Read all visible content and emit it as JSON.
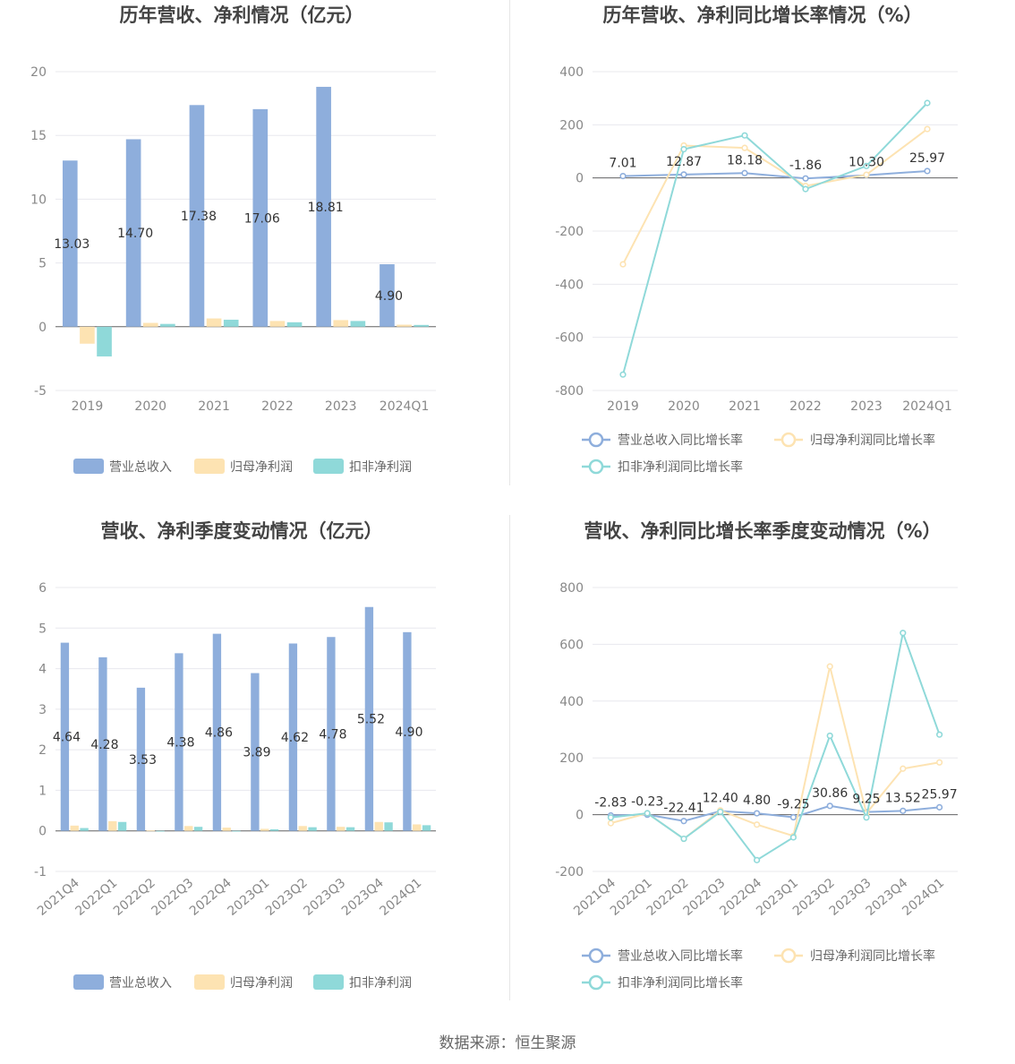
{
  "source": "数据来源：恒生聚源",
  "colors": {
    "revenue": "#8eaedc",
    "net": "#fde3b2",
    "deducted": "#8fd9d9",
    "grid": "#e8e8ee",
    "axis": "#666666",
    "tick": "#888888"
  },
  "chart_data": [
    {
      "type": "bar",
      "title": "历年营收、净利情况（亿元）",
      "categories": [
        "2019",
        "2020",
        "2021",
        "2022",
        "2023",
        "2024Q1"
      ],
      "ylim": [
        -5,
        20
      ],
      "yticks": [
        "-5",
        "0",
        "5",
        "10",
        "15",
        "20"
      ],
      "grid": true,
      "legend_position": "bottom",
      "series": [
        {
          "name": "营业总收入",
          "values": [
            13.03,
            14.7,
            17.38,
            17.06,
            18.81,
            4.9
          ],
          "labels": [
            "13.03",
            "14.70",
            "17.38",
            "17.06",
            "18.81",
            "4.90"
          ]
        },
        {
          "name": "归母净利润",
          "values": [
            -1.33,
            0.3,
            0.65,
            0.45,
            0.52,
            0.16
          ]
        },
        {
          "name": "扣非净利润",
          "values": [
            -2.33,
            0.22,
            0.55,
            0.35,
            0.45,
            0.14
          ]
        }
      ]
    },
    {
      "type": "line",
      "title": "历年营收、净利同比增长率情况（%）",
      "categories": [
        "2019",
        "2020",
        "2021",
        "2022",
        "2023",
        "2024Q1"
      ],
      "ylim": [
        -800,
        400
      ],
      "yticks": [
        "-800",
        "-600",
        "-400",
        "-200",
        "0",
        "200",
        "400"
      ],
      "grid": true,
      "legend_position": "bottom",
      "series": [
        {
          "name": "营业总收入同比增长率",
          "values": [
            7.01,
            12.87,
            18.18,
            -1.86,
            10.3,
            25.97
          ],
          "labels": [
            "7.01",
            "12.87",
            "18.18",
            "-1.86",
            "10.30",
            "25.97"
          ]
        },
        {
          "name": "归母净利润同比增长率",
          "values": [
            -325,
            122,
            113,
            -30,
            12,
            184
          ]
        },
        {
          "name": "扣非净利润同比增长率",
          "values": [
            -740,
            108,
            160,
            -42,
            45,
            282
          ]
        }
      ]
    },
    {
      "type": "bar",
      "title": "营收、净利季度变动情况（亿元）",
      "categories": [
        "2021Q4",
        "2022Q1",
        "2022Q2",
        "2022Q3",
        "2022Q4",
        "2023Q1",
        "2023Q2",
        "2023Q3",
        "2023Q4",
        "2024Q1"
      ],
      "ylim": [
        -1,
        6
      ],
      "yticks": [
        "-1",
        "0",
        "1",
        "2",
        "3",
        "4",
        "5",
        "6"
      ],
      "grid": true,
      "legend_position": "bottom",
      "series": [
        {
          "name": "营业总收入",
          "values": [
            4.64,
            4.28,
            3.53,
            4.38,
            4.86,
            3.89,
            4.62,
            4.78,
            5.52,
            4.9
          ],
          "labels": [
            "4.64",
            "4.28",
            "3.53",
            "4.38",
            "4.86",
            "3.89",
            "4.62",
            "4.78",
            "5.52",
            "4.90"
          ]
        },
        {
          "name": "归母净利润",
          "values": [
            0.13,
            0.24,
            0.01,
            0.12,
            0.08,
            0.05,
            0.12,
            0.1,
            0.22,
            0.16
          ]
        },
        {
          "name": "扣非净利润",
          "values": [
            0.07,
            0.22,
            -0.01,
            0.1,
            -0.01,
            0.04,
            0.09,
            0.09,
            0.21,
            0.14
          ]
        }
      ]
    },
    {
      "type": "line",
      "title": "营收、净利同比增长率季度变动情况（%）",
      "categories": [
        "2021Q4",
        "2022Q1",
        "2022Q2",
        "2022Q3",
        "2022Q4",
        "2023Q1",
        "2023Q2",
        "2023Q3",
        "2023Q4",
        "2024Q1"
      ],
      "ylim": [
        -200,
        800
      ],
      "yticks": [
        "-200",
        "0",
        "200",
        "400",
        "600",
        "800"
      ],
      "grid": true,
      "legend_position": "bottom",
      "series": [
        {
          "name": "营业总收入同比增长率",
          "values": [
            -2.83,
            -0.23,
            -22.41,
            12.4,
            4.8,
            -9.25,
            30.86,
            9.25,
            13.52,
            25.97
          ],
          "labels": [
            "-2.83",
            "-0.23",
            "-22.41",
            "12.40",
            "4.80",
            "-9.25",
            "30.86",
            "9.25",
            "13.52",
            "25.97"
          ]
        },
        {
          "name": "归母净利润同比增长率",
          "values": [
            -30,
            5,
            -85,
            15,
            -35,
            -75,
            522,
            5,
            162,
            184
          ]
        },
        {
          "name": "扣非净利润同比增长率",
          "values": [
            -10,
            5,
            -85,
            10,
            -160,
            -80,
            278,
            -10,
            640,
            282
          ]
        }
      ]
    }
  ]
}
